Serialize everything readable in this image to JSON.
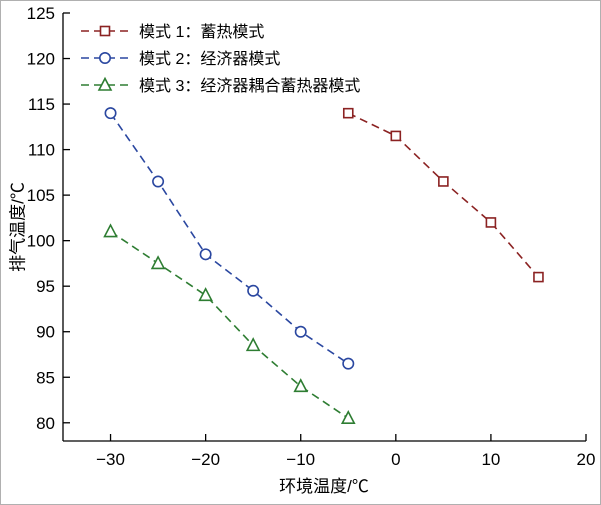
{
  "chart_data": {
    "type": "line",
    "title": "",
    "xlabel": "环境温度/℃",
    "ylabel": "排气温度/℃",
    "xlim": [
      -35,
      20
    ],
    "ylim": [
      78,
      125
    ],
    "xticks": [
      -30,
      -20,
      -10,
      0,
      10,
      20
    ],
    "xtick_labels": [
      "−30",
      "−20",
      "−10",
      "0",
      "10",
      "20"
    ],
    "yticks": [
      80,
      85,
      90,
      95,
      100,
      105,
      110,
      115,
      120,
      125
    ],
    "ytick_labels": [
      "80",
      "85",
      "90",
      "95",
      "100",
      "105",
      "110",
      "115",
      "120",
      "125"
    ],
    "grid": false,
    "legend_position": "top-left",
    "axis_color": "#000000",
    "series": [
      {
        "name": "模式 1：蓄热模式",
        "marker": "square",
        "line_style": "dashed",
        "color": "#8b2222",
        "x": [
          -5,
          0,
          5,
          10,
          15
        ],
        "y": [
          114,
          111.5,
          106.5,
          102,
          96
        ]
      },
      {
        "name": "模式 2：经济器模式",
        "marker": "circle",
        "line_style": "dashed",
        "color": "#2a47a0",
        "x": [
          -30,
          -25,
          -20,
          -15,
          -10,
          -5
        ],
        "y": [
          114,
          106.5,
          98.5,
          94.5,
          90,
          86.5
        ]
      },
      {
        "name": "模式 3：经济器耦合蓄热器模式",
        "marker": "triangle",
        "line_style": "dashed",
        "color": "#2e7d32",
        "x": [
          -30,
          -25,
          -20,
          -15,
          -10,
          -5
        ],
        "y": [
          101,
          97.5,
          94,
          88.5,
          84,
          80.5
        ]
      }
    ]
  }
}
